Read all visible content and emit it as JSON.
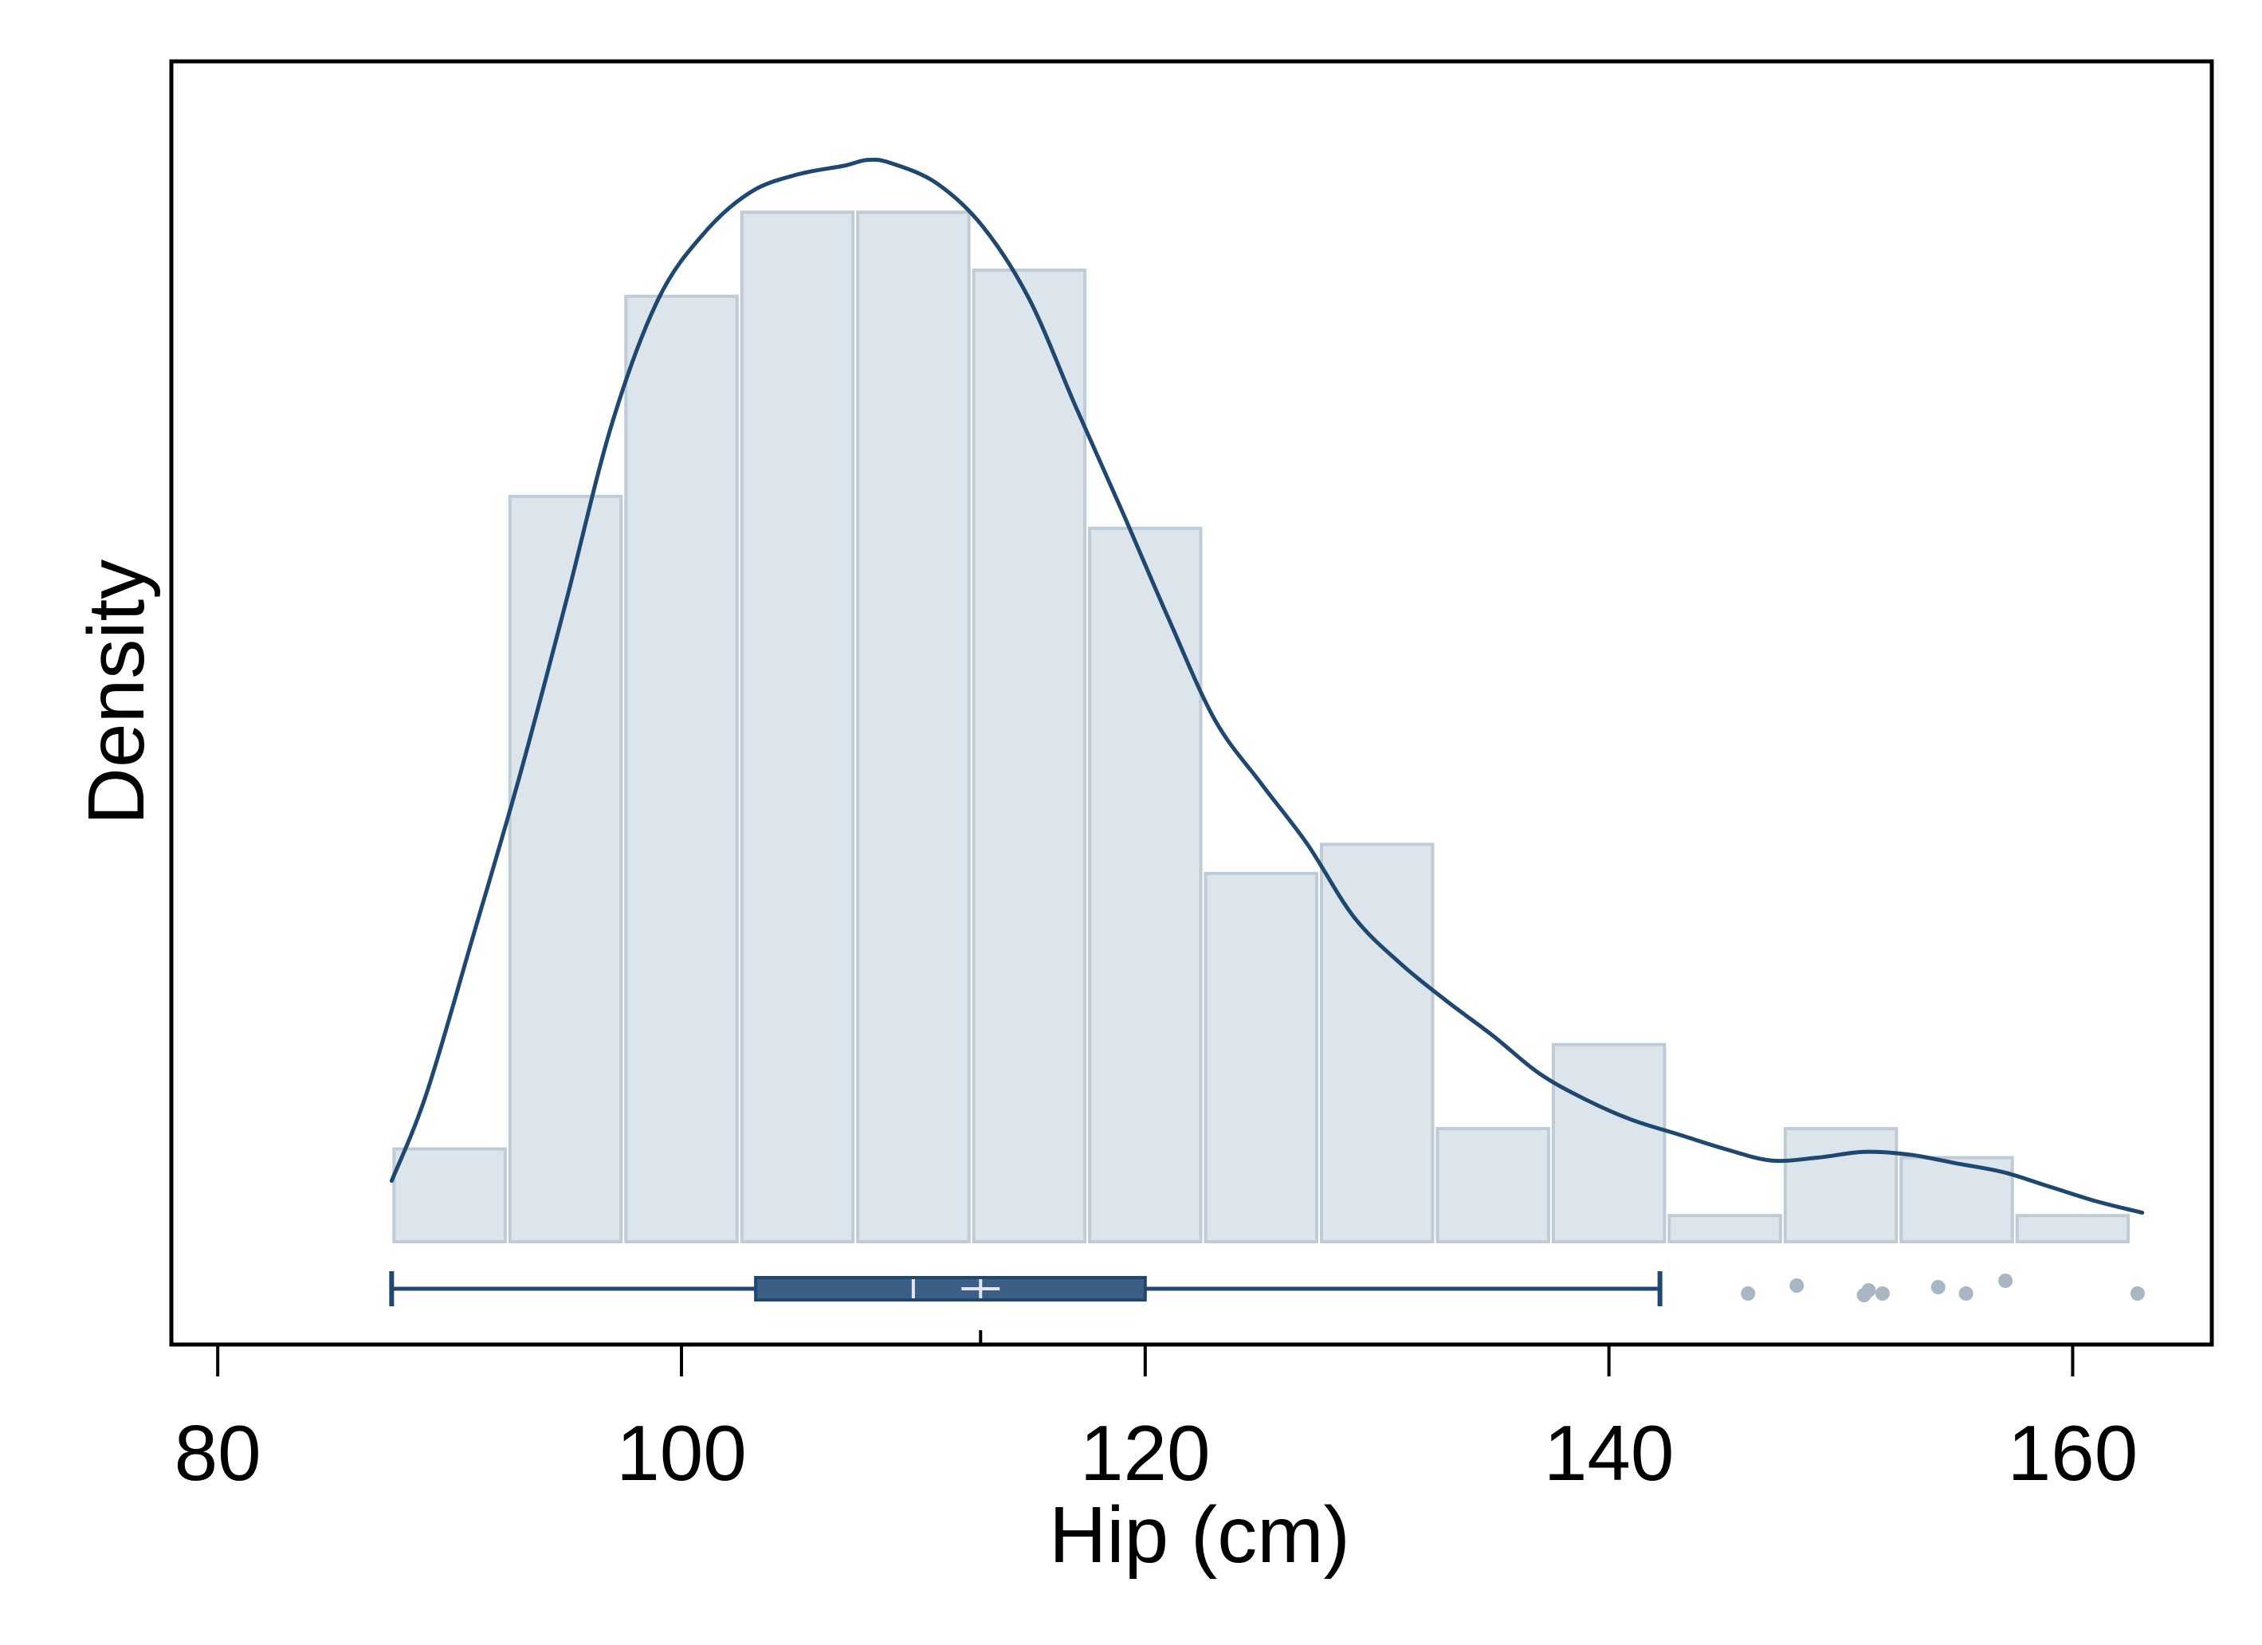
{
  "chart_data": {
    "type": "histogram",
    "xlabel": "Hip (cm)",
    "ylabel": "Density",
    "xlim": [
      78,
      166
    ],
    "ylim": [
      0,
      0.0407
    ],
    "x_ticks": [
      80,
      100,
      120,
      140,
      160
    ],
    "x_tick_labels": [
      "80",
      "100",
      "120",
      "140",
      "160"
    ],
    "y_ticks_shown": false,
    "grid": false,
    "legend": "none",
    "bins": [
      {
        "x0": 87.5,
        "x1": 92.5,
        "density": 0.0032
      },
      {
        "x0": 92.5,
        "x1": 97.5,
        "density": 0.0257
      },
      {
        "x0": 97.5,
        "x1": 102.5,
        "density": 0.0326
      },
      {
        "x0": 102.5,
        "x1": 107.5,
        "density": 0.0355
      },
      {
        "x0": 107.5,
        "x1": 112.5,
        "density": 0.0355
      },
      {
        "x0": 112.5,
        "x1": 117.5,
        "density": 0.0335
      },
      {
        "x0": 117.5,
        "x1": 122.5,
        "density": 0.0246
      },
      {
        "x0": 122.5,
        "x1": 127.5,
        "density": 0.0127
      },
      {
        "x0": 127.5,
        "x1": 132.5,
        "density": 0.0137
      },
      {
        "x0": 132.5,
        "x1": 137.5,
        "density": 0.0039
      },
      {
        "x0": 137.5,
        "x1": 142.5,
        "density": 0.0068
      },
      {
        "x0": 142.5,
        "x1": 147.5,
        "density": 0.0009
      },
      {
        "x0": 147.5,
        "x1": 152.5,
        "density": 0.0039
      },
      {
        "x0": 152.5,
        "x1": 157.5,
        "density": 0.0029
      },
      {
        "x0": 157.5,
        "x1": 162.5,
        "density": 0.0009
      }
    ],
    "kde": {
      "x": [
        87.5,
        89,
        91,
        93,
        95,
        97,
        99,
        101,
        103,
        105,
        107,
        108,
        109,
        111,
        113,
        115,
        117,
        119,
        121,
        123,
        125,
        127,
        129,
        131,
        133,
        135,
        137,
        139,
        141,
        143,
        145,
        147,
        149,
        151,
        153,
        155,
        157,
        159,
        161,
        163
      ],
      "y": [
        0.0021,
        0.0051,
        0.0105,
        0.016,
        0.022,
        0.0282,
        0.0325,
        0.0348,
        0.0362,
        0.0368,
        0.0371,
        0.0373,
        0.0372,
        0.0365,
        0.035,
        0.0325,
        0.0288,
        0.0252,
        0.0215,
        0.018,
        0.0158,
        0.0137,
        0.0112,
        0.0096,
        0.0083,
        0.0071,
        0.0058,
        0.0049,
        0.0042,
        0.0037,
        0.0032,
        0.0028,
        0.0029,
        0.0031,
        0.003,
        0.0027,
        0.0024,
        0.0019,
        0.0014,
        0.001
      ]
    },
    "boxplot": {
      "whisker_low": 87.5,
      "q1": 103.2,
      "median": 110.0,
      "mean": 112.9,
      "q3": 120.0,
      "whisker_high": 142.2,
      "outliers": [
        146.0,
        148.1,
        151.0,
        151.2,
        151.8,
        154.2,
        155.4,
        157.1,
        162.8
      ]
    },
    "colors": {
      "bar_fill": "#dde5ec",
      "bar_edge": "#bfcbd6",
      "kde_line": "#1f4870",
      "box_fill": "#3d5f85",
      "box_edge": "#1f4870",
      "outlier": "#a9b6c4",
      "axis": "#000000"
    }
  }
}
